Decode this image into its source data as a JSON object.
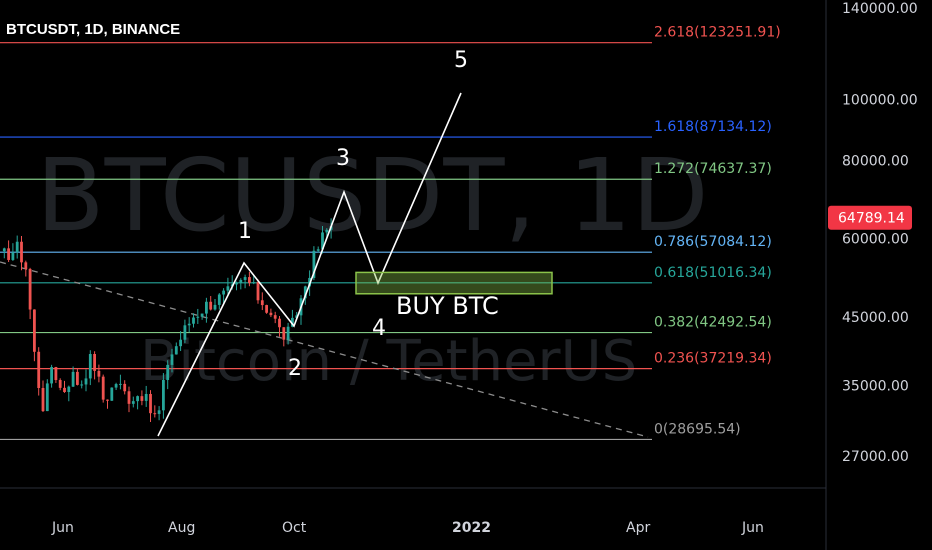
{
  "header": {
    "title": "BTCUSDT, 1D, BINANCE"
  },
  "watermark": {
    "symbol": "BTCUSDT, 1D",
    "pair": "Bitcoin / TetherUS"
  },
  "colors": {
    "background": "#000000",
    "up": "#26a69a",
    "down": "#ef5350",
    "wave": "#ffffff",
    "buy_box": "#8bc34a",
    "last_price_bg": "#f23645",
    "trendline": "#8c8c8c"
  },
  "chart_data": {
    "type": "candlestick",
    "title": "BTCUSDT, 1D, BINANCE",
    "y_scale": "log",
    "ylim": [
      24000,
      150000
    ],
    "x_ticks": [
      "Jun",
      "Aug",
      "Oct",
      "2022",
      "Apr",
      "Jun"
    ],
    "y_ticks": [
      "140000.00",
      "100000.00",
      "80000.00",
      "60000.00",
      "45000.00",
      "35000.00",
      "27000.00"
    ],
    "y_tick_values": [
      140000,
      100000,
      80000,
      60000,
      45000,
      35000,
      27000
    ],
    "last_price": {
      "label": "64789.14",
      "value": 64789.14
    },
    "fib_levels": [
      {
        "label": "2.618(123251.91)",
        "value": 123251.91,
        "color": "#f05350"
      },
      {
        "label": "1.618(87134.12)",
        "value": 87134.12,
        "color": "#2962ff"
      },
      {
        "label": "1.272(74637.37)",
        "value": 74637.37,
        "color": "#81c784"
      },
      {
        "label": "0.786(57084.12)",
        "value": 57084.12,
        "color": "#64b5f6"
      },
      {
        "label": "0.618(51016.34)",
        "value": 51016.34,
        "color": "#26a69a"
      },
      {
        "label": "0.382(42492.54)",
        "value": 42492.54,
        "color": "#81c784"
      },
      {
        "label": "0.236(37219.34)",
        "value": 37219.34,
        "color": "#f05350"
      },
      {
        "label": "0(28695.54)",
        "value": 28695.54,
        "color": "#9e9e9e"
      }
    ],
    "waves": [
      {
        "label": "1"
      },
      {
        "label": "2"
      },
      {
        "label": "3"
      },
      {
        "label": "4"
      },
      {
        "label": "5"
      }
    ],
    "annotation": {
      "label": "BUY BTC",
      "low": 49000,
      "high": 53000
    }
  }
}
